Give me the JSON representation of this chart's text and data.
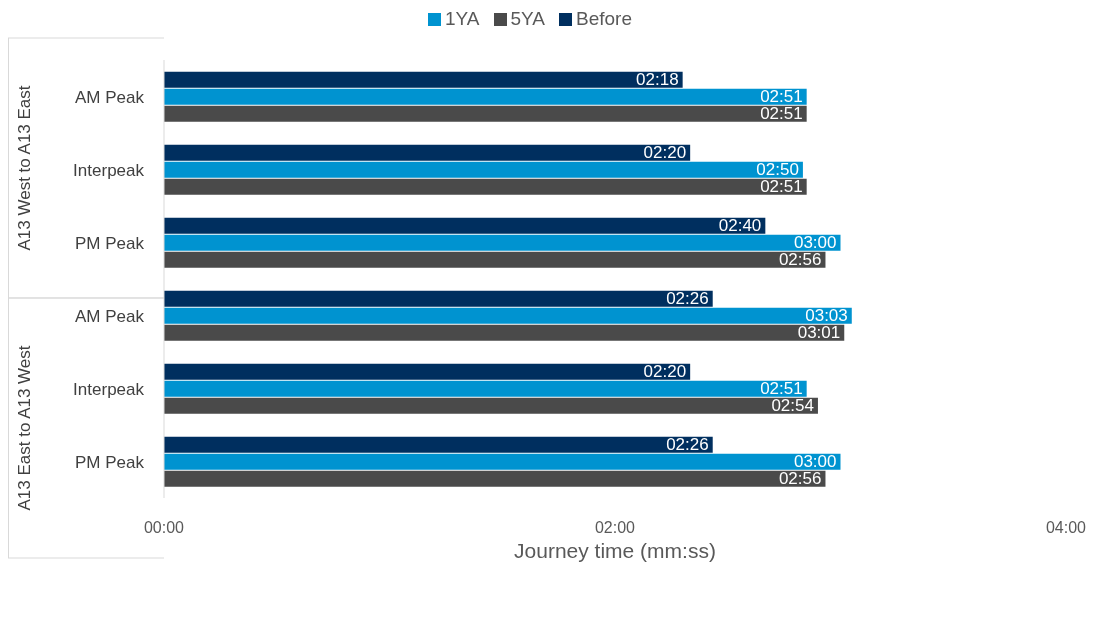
{
  "chart_data": {
    "type": "bar",
    "orientation": "horizontal",
    "xlabel": "Journey time (mm:ss)",
    "categories": [
      "AM Peak",
      "Interpeak",
      "PM Peak",
      "AM Peak",
      "Interpeak",
      "PM Peak"
    ],
    "series": [
      {
        "name": "Before",
        "color": "#002f5f",
        "values": [
          138,
          140,
          160,
          146,
          140,
          146
        ],
        "value_labels": [
          "02:18",
          "02:20",
          "02:40",
          "02:26",
          "02:20",
          "02:26"
        ]
      },
      {
        "name": "1YA",
        "color": "#0093d0",
        "values": [
          171,
          170,
          180,
          183,
          171,
          180
        ],
        "value_labels": [
          "02:51",
          "02:50",
          "03:00",
          "03:03",
          "02:51",
          "03:00"
        ]
      },
      {
        "name": "5YA",
        "color": "#4a4a4a",
        "values": [
          171,
          171,
          176,
          181,
          174,
          176
        ],
        "value_labels": [
          "02:51",
          "02:51",
          "02:56",
          "03:01",
          "02:54",
          "02:56"
        ]
      }
    ],
    "xlim": [
      0,
      240
    ],
    "xticks": [
      {
        "value": 0,
        "label": "00:00"
      },
      {
        "value": 120,
        "label": "02:00"
      },
      {
        "value": 240,
        "label": "04:00"
      }
    ],
    "annotations": [
      "A13 West to A13 East",
      "A13 East to A13 West"
    ],
    "legend": "top",
    "grid": false
  }
}
